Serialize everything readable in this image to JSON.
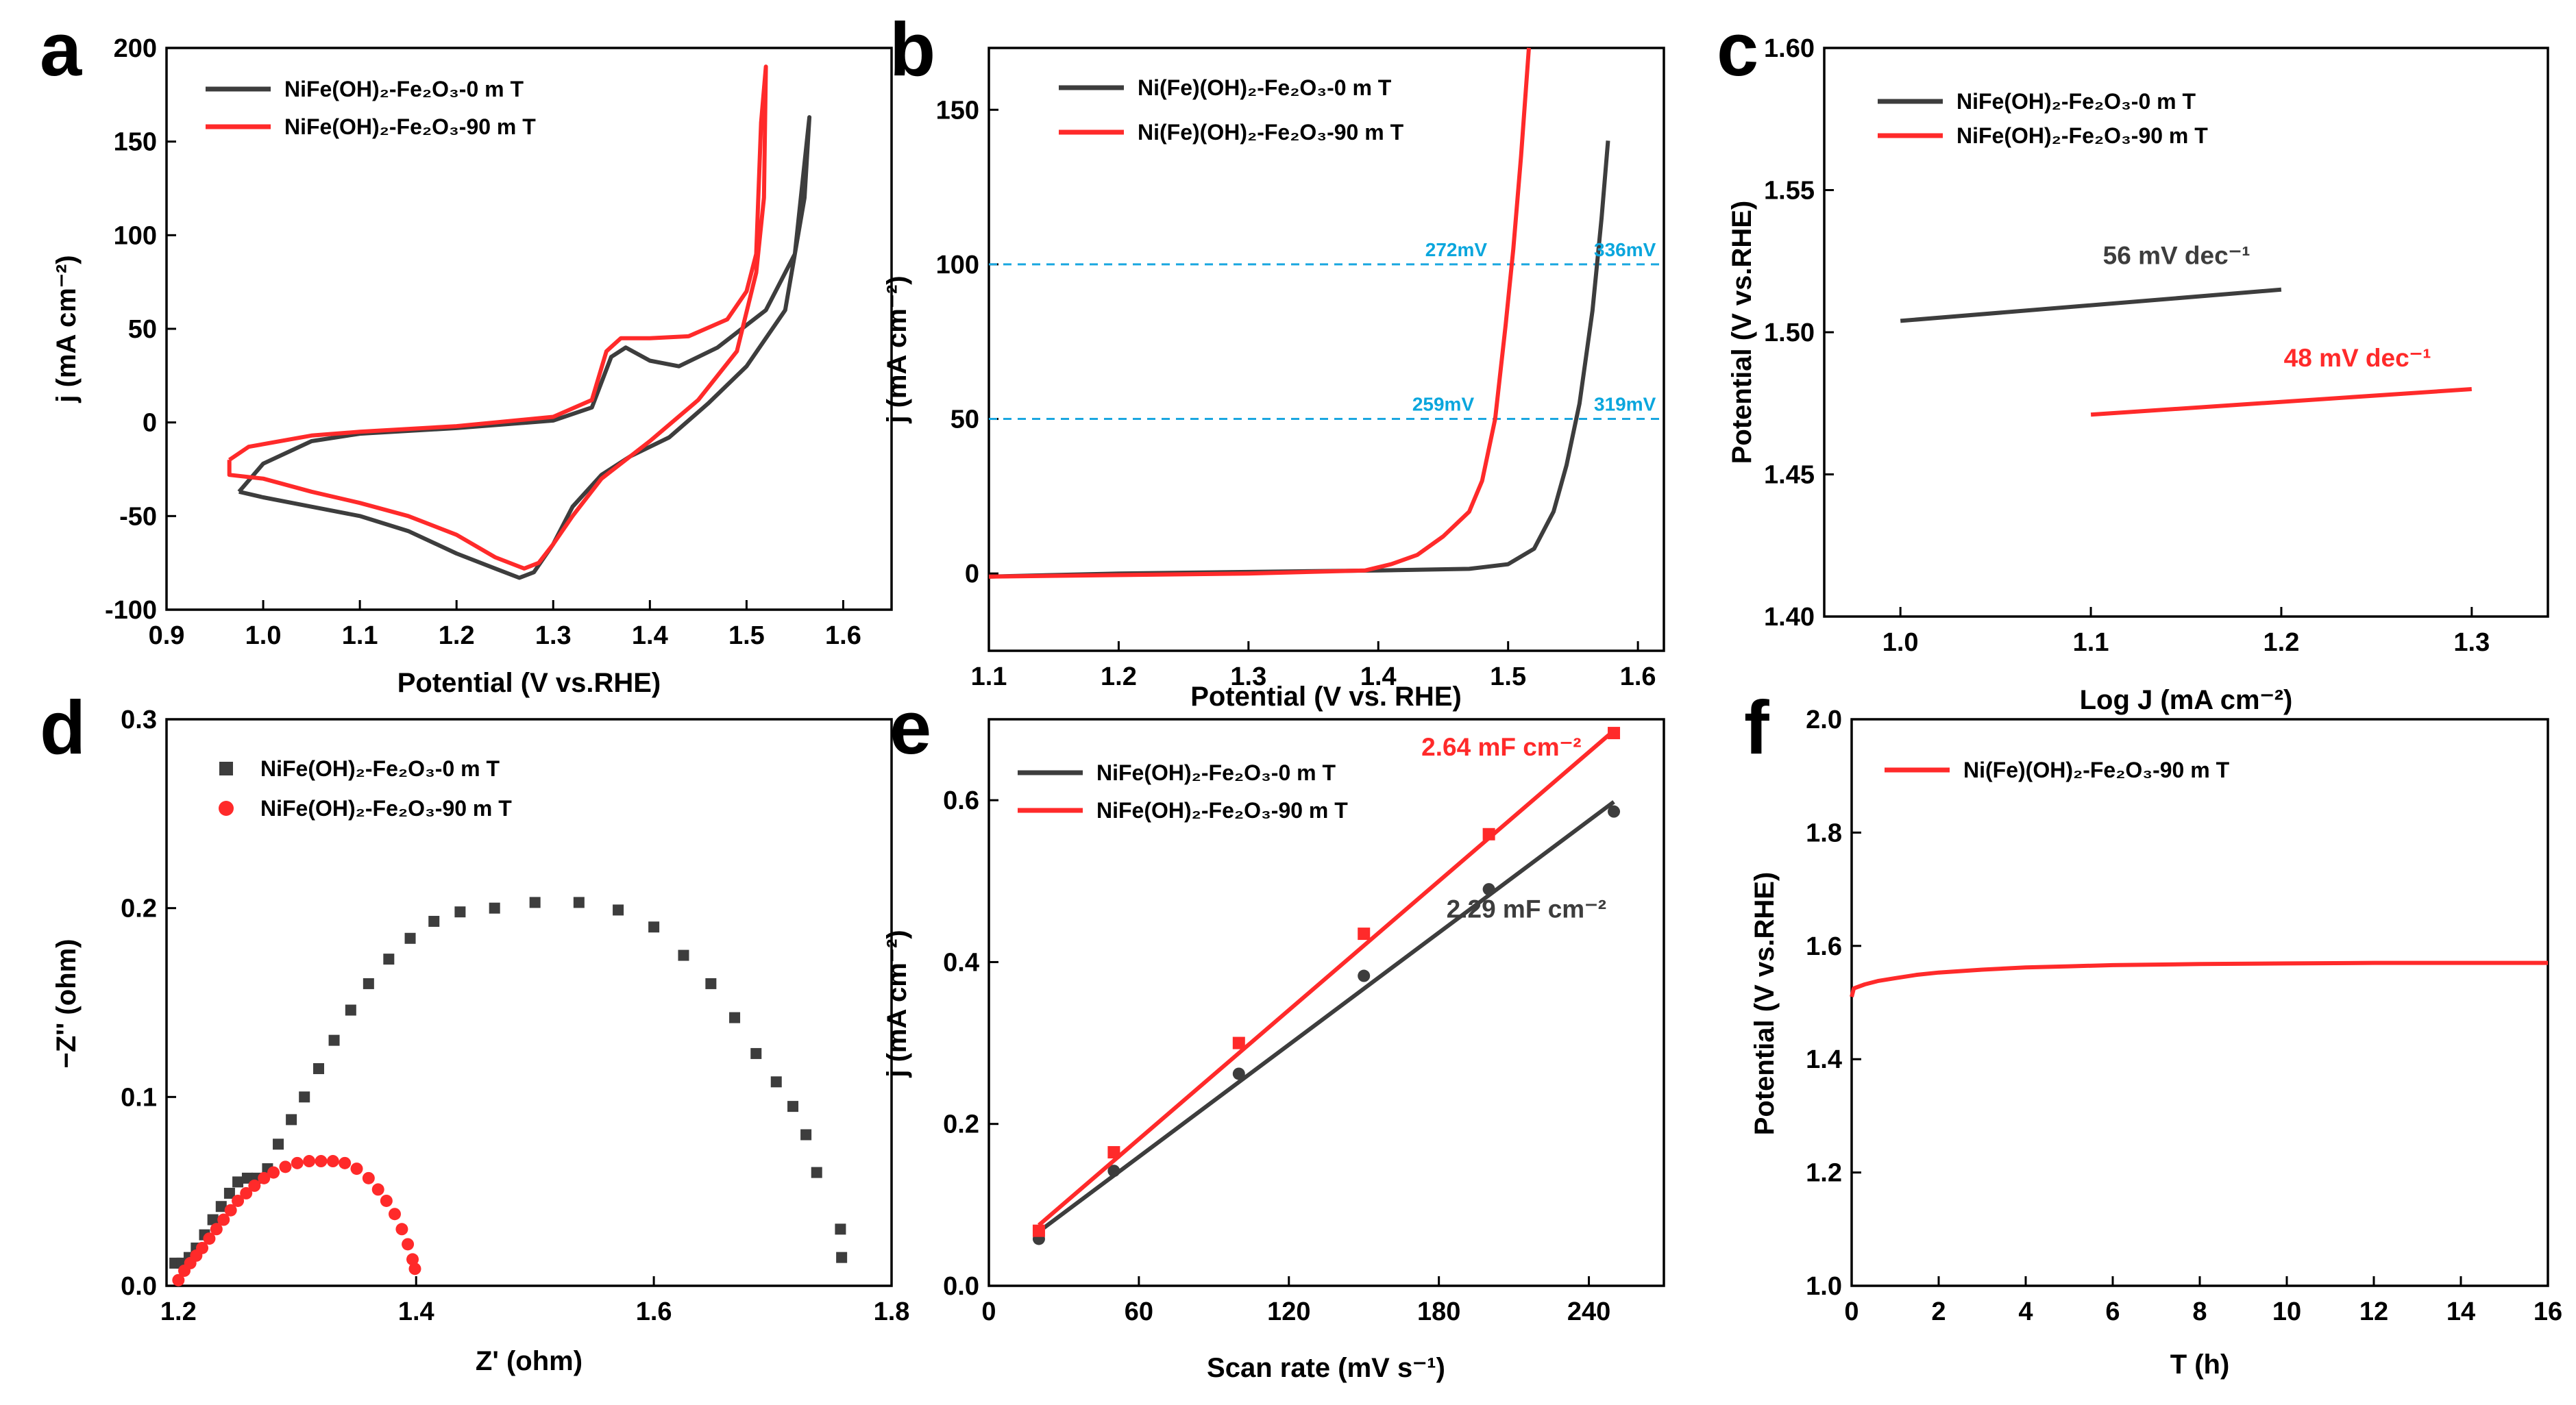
{
  "colors": {
    "black": "#3d3d3d",
    "red": "#ff2a2a",
    "ref": "#1aa7e0"
  },
  "chart_data": [
    {
      "panel": "a",
      "type": "line",
      "xlabel": "Potential (V vs.RHE)",
      "ylabel": "j (mA cm⁻²)",
      "xlim": [
        0.9,
        1.65
      ],
      "ylim": [
        -100,
        200
      ],
      "xticks": [
        0.9,
        1.0,
        1.1,
        1.2,
        1.3,
        1.4,
        1.5,
        1.6
      ],
      "yticks": [
        -100,
        -50,
        0,
        50,
        100,
        150,
        200
      ],
      "series": [
        {
          "name": "NiFe(OH)₂-Fe₂O₃-0 m T",
          "color": "black",
          "points": [
            [
              0.975,
              -37
            ],
            [
              1.0,
              -22
            ],
            [
              1.05,
              -10
            ],
            [
              1.1,
              -6
            ],
            [
              1.2,
              -3
            ],
            [
              1.3,
              1
            ],
            [
              1.34,
              8
            ],
            [
              1.36,
              35
            ],
            [
              1.375,
              40
            ],
            [
              1.4,
              33
            ],
            [
              1.43,
              30
            ],
            [
              1.47,
              40
            ],
            [
              1.52,
              60
            ],
            [
              1.55,
              90
            ],
            [
              1.565,
              163
            ],
            [
              1.56,
              120
            ],
            [
              1.54,
              60
            ],
            [
              1.5,
              30
            ],
            [
              1.46,
              10
            ],
            [
              1.42,
              -8
            ],
            [
              1.38,
              -18
            ],
            [
              1.35,
              -28
            ],
            [
              1.32,
              -45
            ],
            [
              1.3,
              -65
            ],
            [
              1.28,
              -80
            ],
            [
              1.265,
              -83
            ],
            [
              1.24,
              -78
            ],
            [
              1.2,
              -70
            ],
            [
              1.15,
              -58
            ],
            [
              1.1,
              -50
            ],
            [
              1.05,
              -45
            ],
            [
              1.0,
              -40
            ],
            [
              0.975,
              -37
            ]
          ]
        },
        {
          "name": "NiFe(OH)₂-Fe₂O₃-90 m T",
          "color": "red",
          "points": [
            [
              0.965,
              -20
            ],
            [
              0.985,
              -13
            ],
            [
              1.05,
              -7
            ],
            [
              1.1,
              -5
            ],
            [
              1.2,
              -2
            ],
            [
              1.3,
              3
            ],
            [
              1.34,
              12
            ],
            [
              1.355,
              38
            ],
            [
              1.37,
              45
            ],
            [
              1.4,
              45
            ],
            [
              1.44,
              46
            ],
            [
              1.48,
              55
            ],
            [
              1.5,
              70
            ],
            [
              1.51,
              90
            ],
            [
              1.515,
              160
            ],
            [
              1.52,
              190
            ],
            [
              1.518,
              120
            ],
            [
              1.51,
              80
            ],
            [
              1.49,
              38
            ],
            [
              1.45,
              12
            ],
            [
              1.4,
              -10
            ],
            [
              1.35,
              -30
            ],
            [
              1.32,
              -50
            ],
            [
              1.3,
              -65
            ],
            [
              1.285,
              -75
            ],
            [
              1.27,
              -78
            ],
            [
              1.24,
              -72
            ],
            [
              1.2,
              -60
            ],
            [
              1.15,
              -50
            ],
            [
              1.1,
              -43
            ],
            [
              1.05,
              -37
            ],
            [
              1.0,
              -30
            ],
            [
              0.965,
              -28
            ],
            [
              0.965,
              -20
            ]
          ]
        }
      ]
    },
    {
      "panel": "b",
      "type": "line",
      "xlabel": "Potential (V vs. RHE)",
      "ylabel": "j (mA cm⁻²)",
      "xlim": [
        1.1,
        1.62
      ],
      "ylim": [
        -25,
        170
      ],
      "xticks": [
        1.1,
        1.2,
        1.3,
        1.4,
        1.5,
        1.6
      ],
      "yticks": [
        0,
        50,
        100,
        150
      ],
      "series": [
        {
          "name": "Ni(Fe)(OH)₂-Fe₂O₃-0 m T",
          "color": "black",
          "points": [
            [
              1.1,
              -1
            ],
            [
              1.2,
              0
            ],
            [
              1.3,
              0.5
            ],
            [
              1.4,
              1
            ],
            [
              1.47,
              1.5
            ],
            [
              1.5,
              3
            ],
            [
              1.52,
              8
            ],
            [
              1.535,
              20
            ],
            [
              1.545,
              35
            ],
            [
              1.555,
              55
            ],
            [
              1.565,
              85
            ],
            [
              1.572,
              115
            ],
            [
              1.577,
              140
            ]
          ]
        },
        {
          "name": "Ni(Fe)(OH)₂-Fe₂O₃-90 m T",
          "color": "red",
          "points": [
            [
              1.1,
              -1
            ],
            [
              1.3,
              0
            ],
            [
              1.39,
              1
            ],
            [
              1.41,
              3
            ],
            [
              1.43,
              6
            ],
            [
              1.45,
              12
            ],
            [
              1.47,
              20
            ],
            [
              1.48,
              30
            ],
            [
              1.49,
              50
            ],
            [
              1.498,
              80
            ],
            [
              1.504,
              105
            ],
            [
              1.51,
              135
            ],
            [
              1.516,
              170
            ]
          ]
        }
      ],
      "reference_lines": [
        50,
        100
      ],
      "annotations": [
        {
          "text": "272mV",
          "x": 1.46,
          "y": 100
        },
        {
          "text": "336mV",
          "x": 1.59,
          "y": 100
        },
        {
          "text": "259mV",
          "x": 1.45,
          "y": 50
        },
        {
          "text": "319mV",
          "x": 1.59,
          "y": 50
        }
      ]
    },
    {
      "panel": "c",
      "type": "line",
      "xlabel": "Log J (mA cm⁻²)",
      "ylabel": "Potential (V vs.RHE)",
      "xlim": [
        0.96,
        1.34
      ],
      "ylim": [
        1.4,
        1.6
      ],
      "xticks": [
        1.0,
        1.1,
        1.2,
        1.3
      ],
      "yticks": [
        1.4,
        1.45,
        1.5,
        1.55,
        1.6
      ],
      "series": [
        {
          "name": "NiFe(OH)₂-Fe₂O₃-0 m T",
          "color": "black",
          "points": [
            [
              1.0,
              1.504
            ],
            [
              1.2,
              1.515
            ]
          ]
        },
        {
          "name": "NiFe(OH)₂-Fe₂O₃-90 m T",
          "color": "red",
          "points": [
            [
              1.1,
              1.471
            ],
            [
              1.3,
              1.48
            ]
          ]
        }
      ],
      "annotations": [
        {
          "text": "56 mV dec⁻¹",
          "color": "black",
          "x": 1.145,
          "y": 1.524
        },
        {
          "text": "48 mV dec⁻¹",
          "color": "red",
          "x": 1.24,
          "y": 1.488
        }
      ]
    },
    {
      "panel": "d",
      "type": "scatter",
      "xlabel": "Z' (ohm)",
      "ylabel": "−Z'' (ohm)",
      "xlim": [
        1.19,
        1.8
      ],
      "ylim": [
        0,
        0.3
      ],
      "xticks": [
        1.2,
        1.4,
        1.6,
        1.8
      ],
      "yticks": [
        0.0,
        0.1,
        0.2,
        0.3
      ],
      "series": [
        {
          "name": "NiFe(OH)₂-Fe₂O₃-0 m T",
          "color": "black",
          "marker": "square",
          "points": [
            [
              1.197,
              0.012
            ],
            [
              1.203,
              0.012
            ],
            [
              1.209,
              0.015
            ],
            [
              1.215,
              0.02
            ],
            [
              1.222,
              0.027
            ],
            [
              1.229,
              0.035
            ],
            [
              1.236,
              0.042
            ],
            [
              1.243,
              0.049
            ],
            [
              1.25,
              0.055
            ],
            [
              1.258,
              0.057
            ],
            [
              1.266,
              0.057
            ],
            [
              1.275,
              0.062
            ],
            [
              1.284,
              0.075
            ],
            [
              1.295,
              0.088
            ],
            [
              1.306,
              0.1
            ],
            [
              1.318,
              0.115
            ],
            [
              1.331,
              0.13
            ],
            [
              1.345,
              0.146
            ],
            [
              1.36,
              0.16
            ],
            [
              1.377,
              0.173
            ],
            [
              1.395,
              0.184
            ],
            [
              1.415,
              0.193
            ],
            [
              1.437,
              0.198
            ],
            [
              1.466,
              0.2
            ],
            [
              1.5,
              0.203
            ],
            [
              1.537,
              0.203
            ],
            [
              1.57,
              0.199
            ],
            [
              1.6,
              0.19
            ],
            [
              1.625,
              0.175
            ],
            [
              1.648,
              0.16
            ],
            [
              1.668,
              0.142
            ],
            [
              1.686,
              0.123
            ],
            [
              1.703,
              0.108
            ],
            [
              1.717,
              0.095
            ],
            [
              1.728,
              0.08
            ],
            [
              1.737,
              0.06
            ],
            [
              1.757,
              0.03
            ],
            [
              1.758,
              0.015
            ]
          ]
        },
        {
          "name": "NiFe(OH)₂-Fe₂O₃-90 m T",
          "color": "red",
          "marker": "circle",
          "points": [
            [
              1.2,
              0.003
            ],
            [
              1.205,
              0.008
            ],
            [
              1.21,
              0.012
            ],
            [
              1.215,
              0.016
            ],
            [
              1.22,
              0.02
            ],
            [
              1.226,
              0.025
            ],
            [
              1.232,
              0.03
            ],
            [
              1.238,
              0.035
            ],
            [
              1.244,
              0.04
            ],
            [
              1.25,
              0.045
            ],
            [
              1.257,
              0.049
            ],
            [
              1.264,
              0.053
            ],
            [
              1.272,
              0.057
            ],
            [
              1.28,
              0.06
            ],
            [
              1.29,
              0.063
            ],
            [
              1.3,
              0.065
            ],
            [
              1.31,
              0.066
            ],
            [
              1.32,
              0.066
            ],
            [
              1.33,
              0.066
            ],
            [
              1.34,
              0.065
            ],
            [
              1.35,
              0.062
            ],
            [
              1.36,
              0.057
            ],
            [
              1.368,
              0.051
            ],
            [
              1.375,
              0.045
            ],
            [
              1.382,
              0.038
            ],
            [
              1.388,
              0.03
            ],
            [
              1.393,
              0.022
            ],
            [
              1.397,
              0.014
            ],
            [
              1.399,
              0.009
            ]
          ]
        }
      ]
    },
    {
      "panel": "e",
      "type": "scatter",
      "xlabel": "Scan rate (mV s⁻¹)",
      "ylabel": "j (mA cm⁻²)",
      "xlim": [
        0,
        270
      ],
      "ylim": [
        0,
        0.7
      ],
      "xticks": [
        0,
        60,
        120,
        180,
        240
      ],
      "yticks": [
        0.0,
        0.2,
        0.4,
        0.6
      ],
      "series": [
        {
          "name": "NiFe(OH)₂-Fe₂O₃-0 m T",
          "color": "black",
          "x": [
            20,
            50,
            100,
            150,
            200,
            250
          ],
          "values": [
            0.058,
            0.142,
            0.262,
            0.383,
            0.49,
            0.586
          ],
          "fit": [
            0.067,
            0.598
          ]
        },
        {
          "name": "NiFe(OH)₂-Fe₂O₃-90 m T",
          "color": "red",
          "x": [
            20,
            50,
            100,
            150,
            200,
            250
          ],
          "values": [
            0.068,
            0.165,
            0.3,
            0.435,
            0.558,
            0.683
          ],
          "fit": [
            0.075,
            0.686
          ]
        }
      ],
      "annotations": [
        {
          "text": "2.64 mF cm⁻²",
          "color": "red",
          "x": 205,
          "y": 0.655
        },
        {
          "text": "2.29 mF cm⁻²",
          "color": "black",
          "x": 215,
          "y": 0.455
        }
      ]
    },
    {
      "panel": "f",
      "type": "line",
      "xlabel": "T (h)",
      "ylabel": "Potential (V vs.RHE)",
      "xlim": [
        0,
        16
      ],
      "ylim": [
        1.0,
        2.0
      ],
      "xticks": [
        0,
        2,
        4,
        6,
        8,
        10,
        12,
        14,
        16
      ],
      "yticks": [
        1.0,
        1.2,
        1.4,
        1.6,
        1.8,
        2.0
      ],
      "series": [
        {
          "name": "Ni(Fe)(OH)₂-Fe₂O₃-90 m T",
          "color": "red",
          "points": [
            [
              0,
              1.51
            ],
            [
              0.05,
              1.525
            ],
            [
              0.3,
              1.532
            ],
            [
              0.6,
              1.538
            ],
            [
              1.0,
              1.543
            ],
            [
              1.5,
              1.549
            ],
            [
              2,
              1.553
            ],
            [
              3,
              1.558
            ],
            [
              4,
              1.562
            ],
            [
              5,
              1.564
            ],
            [
              6,
              1.566
            ],
            [
              8,
              1.568
            ],
            [
              10,
              1.569
            ],
            [
              12,
              1.57
            ],
            [
              14,
              1.57
            ],
            [
              16,
              1.57
            ]
          ]
        }
      ]
    }
  ]
}
